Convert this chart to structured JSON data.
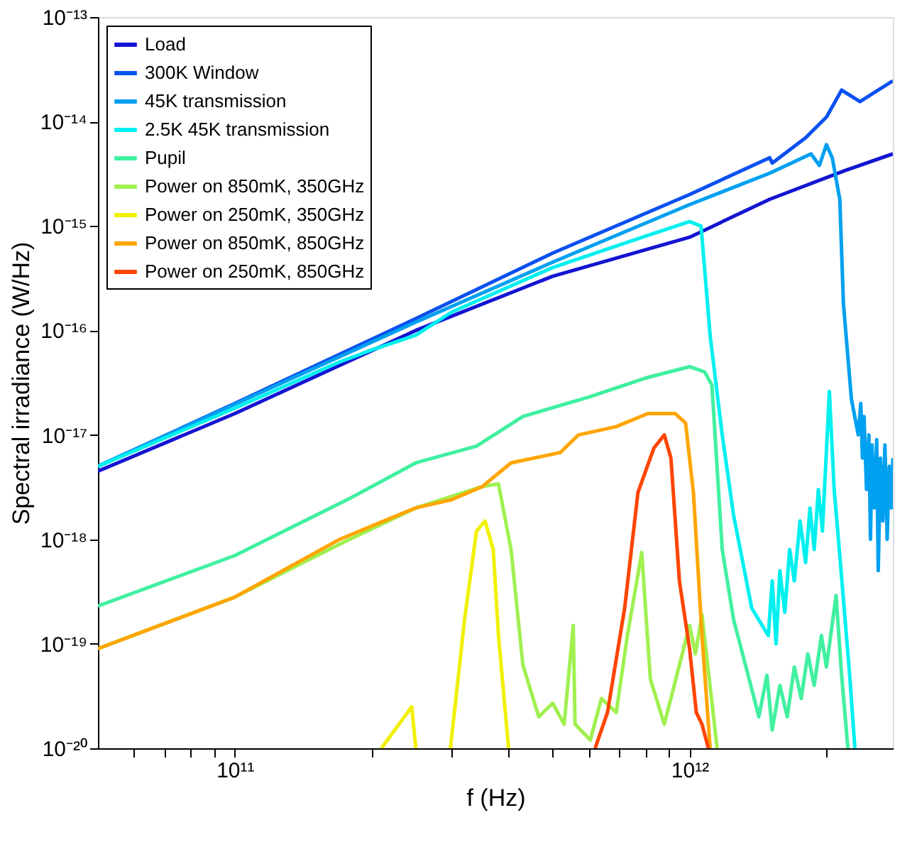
{
  "chart_data": {
    "type": "line",
    "xlabel": "f (Hz)",
    "ylabel": "Spectral irradiance (W/Hz)",
    "log": "xy",
    "grid": false,
    "legend": "top left",
    "line_style": "solid",
    "marker": "none",
    "xlim": [
      50000000000.0,
      2800000000000.0
    ],
    "ylim": [
      1e-20,
      1e-13
    ],
    "xticks": [
      {
        "value": 60000000000.0,
        "label": null
      },
      {
        "value": 70000000000.0,
        "label": null
      },
      {
        "value": 80000000000.0,
        "label": null
      },
      {
        "value": 90000000000.0,
        "label": null
      },
      {
        "value": 100000000000.0,
        "label": "10¹¹"
      },
      {
        "value": 200000000000.0,
        "label": null
      },
      {
        "value": 300000000000.0,
        "label": null
      },
      {
        "value": 400000000000.0,
        "label": null
      },
      {
        "value": 500000000000.0,
        "label": null
      },
      {
        "value": 600000000000.0,
        "label": null
      },
      {
        "value": 700000000000.0,
        "label": null
      },
      {
        "value": 800000000000.0,
        "label": null
      },
      {
        "value": 900000000000.0,
        "label": null
      },
      {
        "value": 1000000000000.0,
        "label": "10¹²"
      },
      {
        "value": 2000000000000.0,
        "label": null
      }
    ],
    "yticks": [
      {
        "value": 1e-20,
        "label": "10⁻²⁰"
      },
      {
        "value": 1e-19,
        "label": "10⁻¹⁹"
      },
      {
        "value": 1e-18,
        "label": "10⁻¹⁸"
      },
      {
        "value": 1e-17,
        "label": "10⁻¹⁷"
      },
      {
        "value": 1e-16,
        "label": "10⁻¹⁶"
      },
      {
        "value": 1e-15,
        "label": "10⁻¹⁵"
      },
      {
        "value": 1e-14,
        "label": "10⁻¹⁴"
      },
      {
        "value": 1e-13,
        "label": "10⁻¹³"
      }
    ],
    "series": [
      {
        "name": "Load",
        "color": "#1414d2",
        "x": [
          50000000000.0,
          100000000000.0,
          250000000000.0,
          500000000000.0,
          1000000000000.0,
          1500000000000.0,
          2200000000000.0,
          2800000000000.0
        ],
        "values": [
          4.5e-18,
          1.6e-17,
          1e-16,
          3.3e-16,
          7.8e-16,
          1.8e-15,
          3.4e-15,
          4.9e-15
        ]
      },
      {
        "name": "300K Window",
        "color": "#0a50f0",
        "x": [
          50000000000.0,
          100000000000.0,
          250000000000.0,
          500000000000.0,
          1000000000000.0,
          1500000000000.0,
          1520000000000.0,
          1800000000000.0,
          2000000000000.0,
          2160000000000.0,
          2370000000000.0,
          2800000000000.0
        ],
        "values": [
          5e-18,
          2e-17,
          1.3e-16,
          5.5e-16,
          2e-15,
          4.5e-15,
          4e-15,
          7e-15,
          1.1e-14,
          2e-14,
          1.55e-14,
          2.45e-14
        ]
      },
      {
        "name": "45K transmission",
        "color": "#00a0f0",
        "x": [
          50000000000.0,
          250000000000.0,
          500000000000.0,
          1000000000000.0,
          1500000000000.0,
          1850000000000.0,
          1930000000000.0,
          2000000000000.0,
          2060000000000.0,
          2140000000000.0,
          2180000000000.0,
          2270000000000.0,
          2350000000000.0,
          2380000000000.0,
          2400000000000.0,
          2420000000000.0,
          2450000000000.0,
          2480000000000.0,
          2500000000000.0,
          2520000000000.0,
          2550000000000.0,
          2580000000000.0,
          2600000000000.0,
          2630000000000.0,
          2660000000000.0,
          2690000000000.0,
          2720000000000.0,
          2750000000000.0,
          2780000000000.0,
          2800000000000.0
        ],
        "values": [
          5e-18,
          1.2e-16,
          4.5e-16,
          1.6e-15,
          3.2e-15,
          4.9e-15,
          3.8e-15,
          6e-15,
          4.5e-15,
          1.8e-15,
          1.8e-16,
          2.2e-17,
          1e-17,
          2e-17,
          6e-18,
          1.5e-17,
          3e-18,
          1e-17,
          1e-18,
          8e-18,
          2e-18,
          9e-18,
          5e-19,
          6e-18,
          1.5e-18,
          8e-18,
          1e-18,
          5e-18,
          2e-18,
          6e-18
        ]
      },
      {
        "name": "2.5K 45K transmission",
        "color": "#00f0f0",
        "x": [
          50000000000.0,
          100000000000.0,
          170000000000.0,
          200000000000.0,
          250000000000.0,
          300000000000.0,
          500000000000.0,
          800000000000.0,
          1000000000000.0,
          1060000000000.0,
          1110000000000.0,
          1180000000000.0,
          1250000000000.0,
          1370000000000.0,
          1490000000000.0,
          1520000000000.0,
          1550000000000.0,
          1580000000000.0,
          1620000000000.0,
          1660000000000.0,
          1700000000000.0,
          1750000000000.0,
          1800000000000.0,
          1840000000000.0,
          1880000000000.0,
          1920000000000.0,
          1960000000000.0,
          2030000000000.0,
          2080000000000.0,
          2150000000000.0,
          2250000000000.0,
          2310000000000.0
        ],
        "values": [
          5e-18,
          1.8e-17,
          5e-17,
          6.5e-17,
          9e-17,
          1.5e-16,
          4e-16,
          8e-16,
          1.1e-15,
          1e-15,
          8.9e-17,
          1e-17,
          1.7e-18,
          2.2e-19,
          1.2e-19,
          4e-19,
          1e-19,
          5e-19,
          2e-19,
          8e-19,
          4e-19,
          1.5e-18,
          6e-19,
          2e-18,
          8e-19,
          3e-18,
          1.2e-18,
          2.6e-17,
          3e-18,
          5.5e-19,
          5e-20,
          1e-20
        ]
      },
      {
        "name": "Pupil",
        "color": "#40f0a0",
        "x": [
          50000000000.0,
          100000000000.0,
          180000000000.0,
          250000000000.0,
          340000000000.0,
          430000000000.0,
          600000000000.0,
          800000000000.0,
          1000000000000.0,
          1080000000000.0,
          1120000000000.0,
          1180000000000.0,
          1250000000000.0,
          1370000000000.0,
          1420000000000.0,
          1480000000000.0,
          1520000000000.0,
          1580000000000.0,
          1640000000000.0,
          1700000000000.0,
          1760000000000.0,
          1820000000000.0,
          1880000000000.0,
          1950000000000.0,
          2000000000000.0,
          2100000000000.0,
          2160000000000.0,
          2230000000000.0
        ],
        "values": [
          2.3e-19,
          7e-19,
          2.5e-18,
          5.4e-18,
          7.8e-18,
          1.5e-17,
          2.3e-17,
          3.5e-17,
          4.5e-17,
          4e-17,
          3e-17,
          8e-19,
          1.7e-19,
          3.7e-20,
          2e-20,
          5e-20,
          1.5e-20,
          4e-20,
          2e-20,
          6e-20,
          3e-20,
          8e-20,
          4e-20,
          1.2e-19,
          6e-20,
          2.9e-19,
          5e-20,
          1e-20
        ]
      },
      {
        "name": "Power on 850mK, 350GHz",
        "color": "#a0f050",
        "x": [
          50000000000.0,
          100000000000.0,
          170000000000.0,
          250000000000.0,
          350000000000.0,
          380000000000.0,
          405000000000.0,
          430000000000.0,
          466000000000.0,
          500000000000.0,
          530000000000.0,
          555000000000.0,
          560000000000.0,
          605000000000.0,
          640000000000.0,
          690000000000.0,
          730000000000.0,
          785000000000.0,
          820000000000.0,
          880000000000.0,
          1000000000000.0,
          1030000000000.0,
          1065000000000.0,
          1150000000000.0
        ],
        "values": [
          9e-20,
          2.8e-19,
          9e-19,
          2e-18,
          3.2e-18,
          3.4e-18,
          8e-19,
          6.3e-20,
          2e-20,
          2.7e-20,
          1.7e-20,
          1.5e-19,
          1.7e-20,
          1.2e-20,
          3e-20,
          2.2e-20,
          1.2e-19,
          7.5e-19,
          4.6e-20,
          1.7e-20,
          1.5e-19,
          8e-20,
          1.9e-19,
          1e-20
        ]
      },
      {
        "name": "Power on 250mK, 350GHz",
        "color": "#f0f000",
        "x": [
          210000000000.0,
          245000000000.0,
          250000000000.0,
          270000000000.0,
          298000000000.0,
          320000000000.0,
          340000000000.0,
          355000000000.0,
          370000000000.0,
          380000000000.0,
          400000000000.0
        ],
        "values": [
          1e-20,
          2.5e-20,
          1e-20,
          null,
          1e-20,
          1.7e-19,
          1.2e-18,
          1.5e-18,
          8e-19,
          1.2e-19,
          1e-20
        ]
      },
      {
        "name": "Power on 850mK, 850GHz",
        "color": "#ffa500",
        "x": [
          50000000000.0,
          100000000000.0,
          170000000000.0,
          250000000000.0,
          300000000000.0,
          350000000000.0,
          405000000000.0,
          480000000000.0,
          520000000000.0,
          570000000000.0,
          690000000000.0,
          810000000000.0,
          930000000000.0,
          980000000000.0,
          1020000000000.0,
          1065000000000.0,
          1110000000000.0
        ],
        "values": [
          9e-20,
          2.8e-19,
          1e-18,
          2e-18,
          2.4e-18,
          3.2e-18,
          5.4e-18,
          6.3e-18,
          6.8e-18,
          1e-17,
          1.2e-17,
          1.6e-17,
          1.6e-17,
          1.3e-17,
          2.8e-18,
          1.2e-19,
          1e-20
        ]
      },
      {
        "name": "Power on 250mK, 850GHz",
        "color": "#ff4500",
        "x": [
          620000000000.0,
          660000000000.0,
          720000000000.0,
          770000000000.0,
          835000000000.0,
          880000000000.0,
          910000000000.0,
          950000000000.0,
          1000000000000.0,
          1035000000000.0,
          1065000000000.0,
          1100000000000.0
        ],
        "values": [
          1e-20,
          2.2e-20,
          2.2e-19,
          2.8e-18,
          7.5e-18,
          1e-17,
          6e-18,
          4e-19,
          9e-20,
          2.2e-20,
          1.7e-20,
          1e-20
        ]
      }
    ]
  }
}
